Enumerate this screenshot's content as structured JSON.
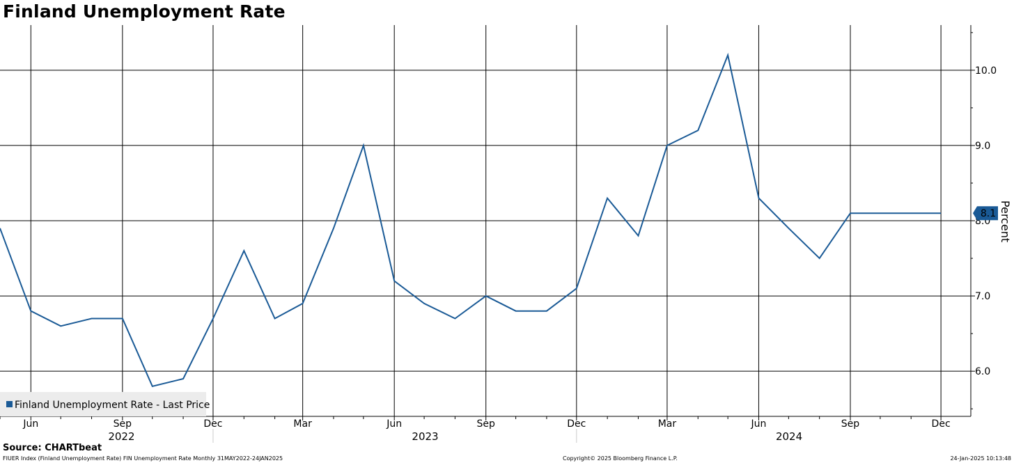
{
  "title": "Finland Unemployment Rate",
  "source": "Source: CHARTbeat",
  "footer": {
    "left": "FIUER Index (Finland Unemployment Rate) FIN Unemployment Rate  Monthly 31MAY2022-24JAN2025",
    "center": "Copyright© 2025 Bloomberg Finance L.P.",
    "right": "24-Jan-2025 10:13:48"
  },
  "colors": {
    "line": "#1a5a96",
    "grid": "#000000",
    "legend_bg": "#ececec"
  },
  "chart_data": {
    "type": "line",
    "title": "Finland Unemployment Rate",
    "ylabel": "Percent",
    "ylim": [
      5.4,
      10.6
    ],
    "yticks": [
      "6.0",
      "7.0",
      "8.0",
      "9.0",
      "10.0"
    ],
    "xlim": [
      "2022-05-01",
      "2024-12-31"
    ],
    "month_ticks": [
      "Jun",
      "Sep",
      "Dec",
      "Mar",
      "Jun",
      "Sep",
      "Dec",
      "Mar",
      "Jun",
      "Sep",
      "Dec"
    ],
    "years": [
      "2022",
      "2023",
      "2024"
    ],
    "last_price_label": "8.1",
    "grid": true,
    "legend_position": "bottom-left",
    "series": [
      {
        "name": "Finland Unemployment Rate - Last Price",
        "x": [
          "2022-05",
          "2022-06",
          "2022-07",
          "2022-08",
          "2022-09",
          "2022-10",
          "2022-11",
          "2022-12",
          "2023-01",
          "2023-02",
          "2023-03",
          "2023-04",
          "2023-05",
          "2023-06",
          "2023-07",
          "2023-08",
          "2023-09",
          "2023-10",
          "2023-11",
          "2023-12",
          "2024-01",
          "2024-02",
          "2024-03",
          "2024-04",
          "2024-05",
          "2024-06",
          "2024-07",
          "2024-08",
          "2024-09",
          "2024-10",
          "2024-11",
          "2024-12"
        ],
        "values": [
          7.9,
          6.8,
          6.6,
          6.7,
          6.7,
          5.8,
          5.9,
          6.7,
          7.6,
          6.7,
          6.9,
          7.9,
          9.0,
          7.2,
          6.9,
          6.7,
          7.0,
          6.8,
          6.8,
          7.1,
          8.3,
          7.8,
          9.0,
          9.2,
          10.2,
          8.3,
          7.9,
          7.5,
          8.1,
          8.1,
          8.1,
          8.1
        ]
      }
    ]
  }
}
